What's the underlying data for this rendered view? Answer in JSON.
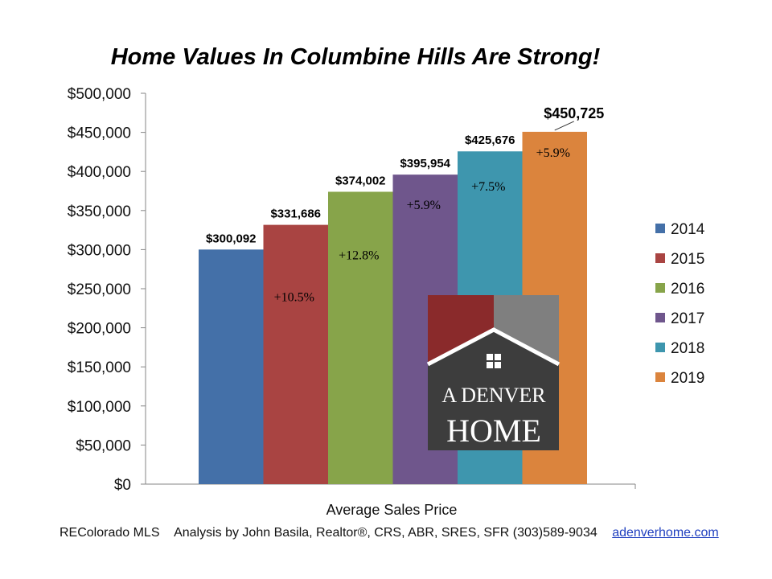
{
  "chart_data": {
    "type": "bar",
    "title": "Home Values In Columbine Hills Are Strong!",
    "xlabel": "Average Sales Price",
    "ylabel": "",
    "ylim": [
      0,
      500000
    ],
    "yticks": [
      0,
      50000,
      100000,
      150000,
      200000,
      250000,
      300000,
      350000,
      400000,
      450000,
      500000
    ],
    "ytick_labels": [
      "$0",
      "$50,000",
      "$100,000",
      "$150,000",
      "$200,000",
      "$250,000",
      "$300,000",
      "$350,000",
      "$400,000",
      "$450,000",
      "$500,000"
    ],
    "legend_position": "right",
    "series": [
      {
        "name": "2014",
        "value": 300092,
        "value_label": "$300,092",
        "change_label": "",
        "color": "#4470A8"
      },
      {
        "name": "2015",
        "value": 331686,
        "value_label": "$331,686",
        "change_label": "+10.5%",
        "color": "#A94442"
      },
      {
        "name": "2016",
        "value": 374002,
        "value_label": "$374,002",
        "change_label": "+12.8%",
        "color": "#87A44A"
      },
      {
        "name": "2017",
        "value": 395954,
        "value_label": "$395,954",
        "change_label": "+5.9%",
        "color": "#6F568C"
      },
      {
        "name": "2018",
        "value": 425676,
        "value_label": "$425,676",
        "change_label": "+7.5%",
        "color": "#3E96AE"
      },
      {
        "name": "2019",
        "value": 450725,
        "value_label": "$450,725",
        "change_label": "+5.9%",
        "color": "#DB843D"
      }
    ]
  },
  "logo": {
    "line1": "A DENVER",
    "line2": "HOME",
    "colors": {
      "dark": "#3d3d3d",
      "red": "#8a2a2b",
      "gray": "#7f7f7f",
      "text": "#ffffff"
    }
  },
  "footer": {
    "source": "REColorado MLS",
    "analysis": "Analysis by John Basila, Realtor®, CRS, ABR, SRES, SFR (303)589-9034",
    "link": "adenverhome.com"
  }
}
